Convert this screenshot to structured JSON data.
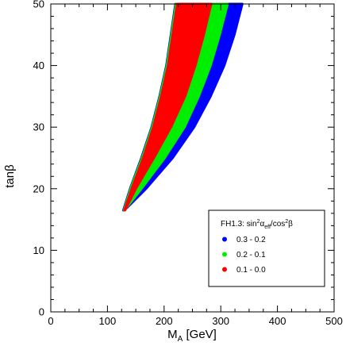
{
  "chart_data": {
    "type": "scatter",
    "xlabel": "M",
    "xlabel_sub": "A",
    "xlabel_unit": " [GeV]",
    "ylabel": "tanβ",
    "xlim": [
      0,
      500
    ],
    "ylim": [
      0,
      50
    ],
    "x_ticks": [
      "0",
      "100",
      "200",
      "300",
      "400",
      "500"
    ],
    "y_ticks": [
      "0",
      "10",
      "20",
      "30",
      "40",
      "50"
    ],
    "grid": false,
    "legend_position": "lower-right",
    "legend": {
      "title_prefix": "FH1.3: sin",
      "title_sup1": "2",
      "title_mid": "α",
      "title_sub": "eff",
      "title_slash": "/cos",
      "title_sup2": "2",
      "title_end": "β"
    },
    "series": [
      {
        "name": "0.3 - 0.2",
        "color": "#0000ff",
        "band": {
          "tanb": [
            16.5,
            20,
            25,
            30,
            35,
            40,
            45,
            50
          ],
          "ma_left": [
            128,
            140,
            160,
            178,
            192,
            204,
            212,
            220
          ],
          "ma_right": [
            130,
            168,
            215,
            253,
            282,
            306,
            324,
            338
          ]
        }
      },
      {
        "name": "0.2 - 0.1",
        "color": "#00ee00",
        "band": {
          "tanb": [
            16.5,
            20,
            25,
            30,
            35,
            40,
            45,
            50
          ],
          "ma_left": [
            129,
            141,
            161,
            179,
            193,
            205,
            213,
            221
          ],
          "ma_right": [
            130,
            160,
            201,
            236,
            261,
            282,
            298,
            312
          ]
        }
      },
      {
        "name": "0.1 - 0.0",
        "color": "#ff0000",
        "band": {
          "tanb": [
            16.5,
            20,
            25,
            30,
            35,
            40,
            45,
            50
          ],
          "ma_left": [
            130,
            143,
            163,
            181,
            195,
            207,
            215,
            223
          ],
          "ma_right": [
            131,
            150,
            182,
            212,
            237,
            255,
            270,
            283
          ]
        }
      }
    ]
  }
}
